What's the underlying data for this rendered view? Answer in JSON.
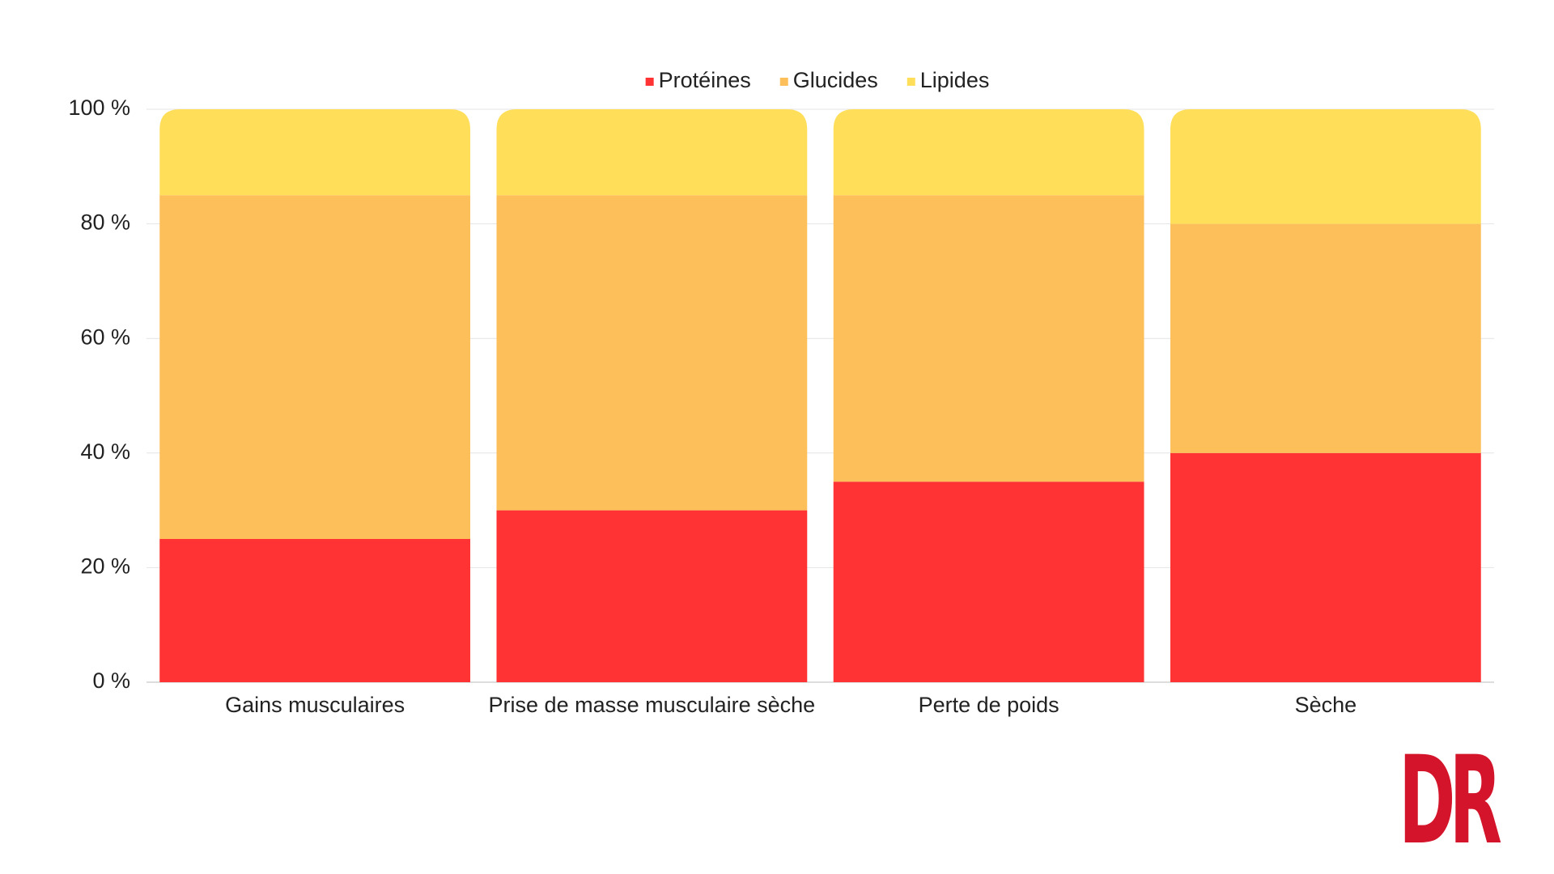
{
  "chart_data": {
    "type": "stacked-bar",
    "categories": [
      "Gains musculaires",
      "Prise de masse musculaire sèche",
      "Perte de poids",
      "Sèche"
    ],
    "series": [
      {
        "name": "Protéines",
        "color": "#ff3333",
        "values": [
          25,
          30,
          35,
          40
        ]
      },
      {
        "name": "Glucides",
        "color": "#fdbf5a",
        "values": [
          60,
          55,
          50,
          40
        ]
      },
      {
        "name": "Lipides",
        "color": "#ffdf5a",
        "values": [
          15,
          15,
          15,
          20
        ]
      }
    ],
    "ylim": [
      0,
      100
    ],
    "yticks": [
      {
        "value": 0,
        "label": "0 %"
      },
      {
        "value": 20,
        "label": "20 %"
      },
      {
        "value": 40,
        "label": "40 %"
      },
      {
        "value": 60,
        "label": "60 %"
      },
      {
        "value": 80,
        "label": "80 %"
      },
      {
        "value": 100,
        "label": "100 %"
      }
    ],
    "grid": true,
    "legend": "top"
  },
  "logo": "DR"
}
